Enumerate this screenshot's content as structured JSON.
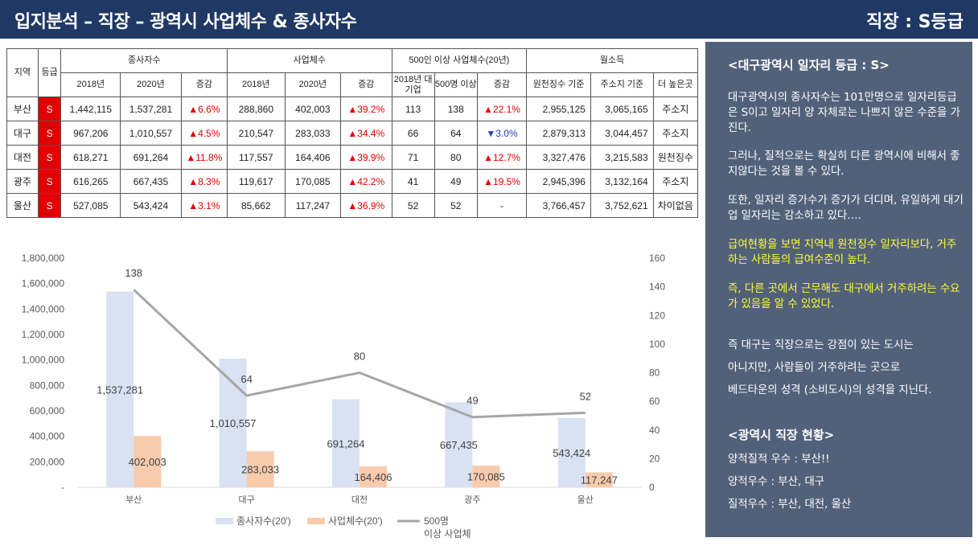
{
  "header": {
    "title": "입지분석 – 직장 – 광역시 사업체수 & 종사자수",
    "grade": "직장 : S등급"
  },
  "table": {
    "col_region": "지역",
    "col_grade": "등급",
    "group_employees": "종사자수",
    "group_businesses": "사업체수",
    "group_large": "500인 이상 사업체수(20년)",
    "group_income": "월소득",
    "sub_2018": "2018년",
    "sub_2020": "2020년",
    "sub_change": "증감",
    "sub_large_2018": "2018년 대기업",
    "sub_large_500": "500명 이상",
    "sub_income_src": "원천징수 기준",
    "sub_income_addr": "주소지 기준",
    "sub_income_higher": "더 높은곳",
    "rows": [
      {
        "region": "부산",
        "grade": "S",
        "emp2018": "1,442,115",
        "emp2020": "1,537,281",
        "empChg": "▲6.6%",
        "biz2018": "288,860",
        "biz2020": "402,003",
        "bizChg": "▲39.2%",
        "l2018": "113",
        "l500": "138",
        "lChg": "▲22.1%",
        "incSrc": "2,955,125",
        "incAddr": "3,065,165",
        "higher": "주소지"
      },
      {
        "region": "대구",
        "grade": "S",
        "emp2018": "967,206",
        "emp2020": "1,010,557",
        "empChg": "▲4.5%",
        "biz2018": "210,547",
        "biz2020": "283,033",
        "bizChg": "▲34.4%",
        "l2018": "66",
        "l500": "64",
        "lChg": "▼3.0%",
        "incSrc": "2,879,313",
        "incAddr": "3,044,457",
        "higher": "주소지"
      },
      {
        "region": "대전",
        "grade": "S",
        "emp2018": "618,271",
        "emp2020": "691,264",
        "empChg": "▲11.8%",
        "biz2018": "117,557",
        "biz2020": "164,406",
        "bizChg": "▲39.9%",
        "l2018": "71",
        "l500": "80",
        "lChg": "▲12.7%",
        "incSrc": "3,327,476",
        "incAddr": "3,215,583",
        "higher": "원천징수"
      },
      {
        "region": "광주",
        "grade": "S",
        "emp2018": "616,265",
        "emp2020": "667,435",
        "empChg": "▲8.3%",
        "biz2018": "119,617",
        "biz2020": "170,085",
        "bizChg": "▲42.2%",
        "l2018": "41",
        "l500": "49",
        "lChg": "▲19.5%",
        "incSrc": "2,945,396",
        "incAddr": "3,132,164",
        "higher": "주소지"
      },
      {
        "region": "울산",
        "grade": "S",
        "emp2018": "527,085",
        "emp2020": "543,424",
        "empChg": "▲3.1%",
        "biz2018": "85,662",
        "biz2020": "117,247",
        "bizChg": "▲36.9%",
        "l2018": "52",
        "l500": "52",
        "lChg": "-",
        "incSrc": "3,766,457",
        "incAddr": "3,752,621",
        "higher": "차이없음"
      }
    ]
  },
  "chart_data": {
    "type": "bar",
    "categories": [
      "부산",
      "대구",
      "대전",
      "광주",
      "울산"
    ],
    "series": [
      {
        "name": "종사자수(20')",
        "type": "bar",
        "axis": "left",
        "color": "#d9e2f3",
        "values": [
          1537281,
          1010557,
          691264,
          667435,
          543424
        ],
        "labels": [
          "1,537,281",
          "1,010,557",
          "691,264",
          "667,435",
          "543,424"
        ]
      },
      {
        "name": "사업체수(20')",
        "type": "bar",
        "axis": "left",
        "color": "#f8cbad",
        "values": [
          402003,
          283033,
          164406,
          170085,
          117247
        ],
        "labels": [
          "402,003",
          "283,033",
          "164,406",
          "170,085",
          "117,247"
        ]
      },
      {
        "name": "500명 이상 사업체",
        "type": "line",
        "axis": "right",
        "color": "#a6a6a6",
        "values": [
          138,
          64,
          80,
          49,
          52
        ],
        "labels": [
          "138",
          "64",
          "80",
          "49",
          "52"
        ]
      }
    ],
    "ylim_left": [
      0,
      1800000
    ],
    "ylim_right": [
      0,
      160
    ],
    "yticks_left": [
      "-",
      "200,000",
      "400,000",
      "600,000",
      "800,000",
      "1,000,000",
      "1,200,000",
      "1,400,000",
      "1,600,000",
      "1,800,000"
    ],
    "yticks_right": [
      "0",
      "20",
      "40",
      "60",
      "80",
      "100",
      "120",
      "140",
      "160"
    ],
    "legend_placement": "bottom",
    "grid": false
  },
  "panel": {
    "heading1": "<대구광역시 일자리 등급 : S>",
    "p1": "대구광역시의 종사자수는 101만명으로 일자리등급은 S이고 일자리 양 자체로는 나쁘지 않은 수준을 가진다.",
    "p2": " 그러나, 질적으로는 확실히 다른 광역시에 비해서 좋지않다는 것을 볼 수 있다.",
    "p3": " 또한, 일자리 증가수가 증가가 더디며, 유일하게 대기업 일자리는 감소하고 있다….",
    "p4": " 급여현황을 보면 지역내 원천징수 일자리보다, 거주하는 사람들의 급여수준이 높다.",
    "p5": "즉, 다른 곳에서 근무해도 대구에서 거주하려는 수요가 있음을 알 수 있었다.",
    "p6a": "즉 대구는 직장으로는 강점이 있는 도시는",
    "p6b": "아니지만, 사람들이 거주하려는 곳으로",
    "p6c": "베드타운의 성격 (소비도시)의 성격을 지닌다.",
    "heading2": "<광역시 직장 현황>",
    "s1": "양적질적 우수 : 부산!!",
    "s2": "양적우수 : 부산, 대구",
    "s3": "질적우수 : 부산, 대전, 울산"
  }
}
